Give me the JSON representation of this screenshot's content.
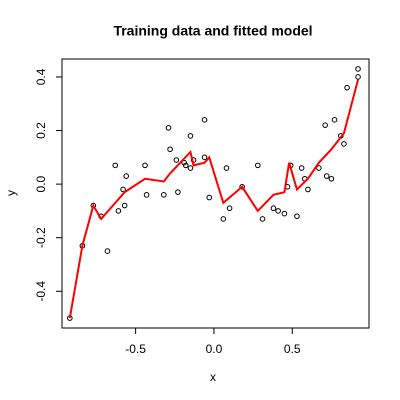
{
  "chart_data": {
    "type": "scatter",
    "title": "Training data and fitted model",
    "x_label": "x",
    "y_label": "y",
    "xlim": [
      -0.97,
      0.99
    ],
    "ylim": [
      -0.537,
      0.467
    ],
    "xticks": [
      -0.5,
      {
        "value": 0,
        "label": "0.0"
      },
      0.5
    ],
    "yticks": [
      -0.4,
      -0.2,
      {
        "value": 0,
        "label": "0.0"
      },
      0.2,
      0.4
    ],
    "series": [
      {
        "style": "points",
        "color": "#000000",
        "x": [
          -0.92,
          -0.84,
          -0.77,
          -0.72,
          -0.68,
          -0.63,
          -0.61,
          -0.58,
          -0.57,
          -0.56,
          -0.44,
          -0.43,
          -0.32,
          -0.29,
          -0.28,
          -0.24,
          -0.23,
          -0.19,
          -0.18,
          -0.15,
          -0.15,
          -0.13,
          -0.06,
          -0.06,
          -0.03,
          0.06,
          0.08,
          0.1,
          0.18,
          0.28,
          0.31,
          0.38,
          0.41,
          0.45,
          0.47,
          0.49,
          0.53,
          0.56,
          0.58,
          0.6,
          0.67,
          0.71,
          0.72,
          0.75,
          0.77,
          0.81,
          0.83,
          0.85,
          0.92,
          0.92
        ],
        "values": [
          -0.5,
          -0.23,
          -0.08,
          -0.12,
          -0.25,
          0.07,
          -0.1,
          -0.02,
          -0.08,
          0.03,
          0.07,
          -0.04,
          -0.04,
          0.21,
          0.13,
          0.09,
          -0.03,
          0.08,
          0.07,
          0.18,
          0.06,
          0.09,
          0.24,
          0.1,
          -0.05,
          -0.13,
          0.06,
          -0.09,
          -0.01,
          0.07,
          -0.13,
          -0.09,
          -0.1,
          -0.11,
          -0.01,
          0.07,
          -0.12,
          0.06,
          0.02,
          -0.02,
          0.06,
          0.22,
          0.03,
          0.02,
          0.24,
          0.18,
          0.15,
          0.36,
          0.43,
          0.4
        ]
      },
      {
        "style": "line",
        "color": "#ff0000",
        "x": [
          -0.92,
          -0.84,
          -0.77,
          -0.72,
          -0.63,
          -0.57,
          -0.44,
          -0.32,
          -0.28,
          -0.15,
          -0.13,
          -0.06,
          -0.03,
          0.06,
          0.18,
          0.28,
          0.38,
          0.45,
          0.48,
          0.53,
          0.6,
          0.67,
          0.75,
          0.83,
          0.92
        ],
        "values": [
          -0.5,
          -0.23,
          -0.08,
          -0.13,
          -0.07,
          -0.03,
          0.02,
          0.01,
          0.04,
          0.12,
          0.07,
          0.08,
          0.1,
          -0.07,
          -0.01,
          -0.1,
          -0.04,
          -0.03,
          0.08,
          -0.02,
          0.02,
          0.08,
          0.13,
          0.19,
          0.39
        ]
      }
    ]
  }
}
